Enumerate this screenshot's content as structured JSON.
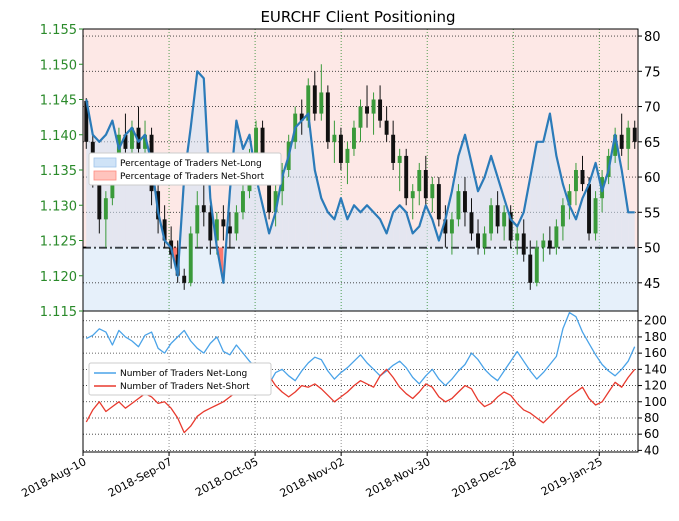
{
  "chart_data": {
    "title": "EURCHF Client Positioning",
    "type": "line",
    "x_tick_labels": [
      "2018-Aug-10",
      "2018-Sep-07",
      "2018-Oct-05",
      "2018-Nov-02",
      "2018-Nov-30",
      "2018-Dec-28",
      "2019-Jan-25"
    ],
    "price_axis": {
      "ticks": [
        "1.115",
        "1.120",
        "1.125",
        "1.130",
        "1.135",
        "1.140",
        "1.145",
        "1.150",
        "1.155"
      ],
      "ylim": [
        1.115,
        1.155
      ],
      "color": "#2a8a2a"
    },
    "percent_axis": {
      "ticks": [
        "45",
        "50",
        "55",
        "60",
        "65",
        "70",
        "75",
        "80"
      ],
      "ylim": [
        41,
        81
      ]
    },
    "count_axis": {
      "ticks": [
        "40",
        "60",
        "80",
        "100",
        "120",
        "140",
        "160",
        "180",
        "200"
      ],
      "ylim": [
        38,
        212
      ]
    },
    "upper_legend": [
      "Percentage of Traders Net-Long",
      "Percentage of Traders Net-Short"
    ],
    "lower_legend": [
      "Number of Traders Net-Long",
      "Number of Traders Net-Short"
    ],
    "neutral_level": 50,
    "grid": true,
    "legend_upper_placement": "center-left",
    "legend_lower_placement": "center-left",
    "colors": {
      "net_long_line": "#2b7bb9",
      "net_short_fill": "#ff6b5e",
      "long_count_line": "#4aa3e8",
      "short_count_line": "#e83a2e",
      "candle_up": "#3a9a3a",
      "candle_down": "#111111",
      "long_region": "#e6f0fa",
      "short_region": "#fde8e6"
    },
    "candles": [
      [
        1.1448,
        1.1452,
        1.138,
        1.139
      ],
      [
        1.139,
        1.14,
        1.1325,
        1.133
      ],
      [
        1.133,
        1.134,
        1.126,
        1.128
      ],
      [
        1.128,
        1.132,
        1.124,
        1.131
      ],
      [
        1.131,
        1.136,
        1.13,
        1.135
      ],
      [
        1.135,
        1.141,
        1.134,
        1.14
      ],
      [
        1.14,
        1.143,
        1.136,
        1.138
      ],
      [
        1.138,
        1.142,
        1.135,
        1.141
      ],
      [
        1.141,
        1.144,
        1.137,
        1.138
      ],
      [
        1.138,
        1.142,
        1.136,
        1.14
      ],
      [
        1.14,
        1.141,
        1.13,
        1.132
      ],
      [
        1.132,
        1.134,
        1.126,
        1.128
      ],
      [
        1.128,
        1.13,
        1.124,
        1.125
      ],
      [
        1.125,
        1.127,
        1.121,
        1.123
      ],
      [
        1.123,
        1.125,
        1.119,
        1.12
      ],
      [
        1.12,
        1.121,
        1.118,
        1.119
      ],
      [
        1.119,
        1.127,
        1.1185,
        1.126
      ],
      [
        1.126,
        1.132,
        1.124,
        1.13
      ],
      [
        1.13,
        1.133,
        1.127,
        1.129
      ],
      [
        1.129,
        1.13,
        1.123,
        1.125
      ],
      [
        1.125,
        1.129,
        1.123,
        1.128
      ],
      [
        1.128,
        1.13,
        1.125,
        1.127
      ],
      [
        1.127,
        1.129,
        1.124,
        1.126
      ],
      [
        1.126,
        1.13,
        1.125,
        1.129
      ],
      [
        1.129,
        1.133,
        1.128,
        1.132
      ],
      [
        1.132,
        1.138,
        1.131,
        1.137
      ],
      [
        1.137,
        1.142,
        1.136,
        1.141
      ],
      [
        1.141,
        1.142,
        1.134,
        1.135
      ],
      [
        1.135,
        1.136,
        1.128,
        1.129
      ],
      [
        1.129,
        1.133,
        1.127,
        1.132
      ],
      [
        1.132,
        1.136,
        1.13,
        1.135
      ],
      [
        1.135,
        1.14,
        1.134,
        1.139
      ],
      [
        1.139,
        1.144,
        1.138,
        1.143
      ],
      [
        1.143,
        1.145,
        1.14,
        1.142
      ],
      [
        1.142,
        1.148,
        1.141,
        1.147
      ],
      [
        1.147,
        1.149,
        1.142,
        1.143
      ],
      [
        1.143,
        1.15,
        1.142,
        1.146
      ],
      [
        1.146,
        1.147,
        1.138,
        1.139
      ],
      [
        1.139,
        1.142,
        1.136,
        1.14
      ],
      [
        1.14,
        1.141,
        1.135,
        1.136
      ],
      [
        1.136,
        1.139,
        1.133,
        1.138
      ],
      [
        1.138,
        1.142,
        1.137,
        1.141
      ],
      [
        1.141,
        1.145,
        1.139,
        1.144
      ],
      [
        1.144,
        1.147,
        1.141,
        1.143
      ],
      [
        1.143,
        1.146,
        1.14,
        1.145
      ],
      [
        1.145,
        1.147,
        1.141,
        1.142
      ],
      [
        1.142,
        1.144,
        1.139,
        1.14
      ],
      [
        1.14,
        1.142,
        1.135,
        1.136
      ],
      [
        1.136,
        1.138,
        1.132,
        1.137
      ],
      [
        1.137,
        1.138,
        1.13,
        1.131
      ],
      [
        1.131,
        1.133,
        1.128,
        1.132
      ],
      [
        1.132,
        1.136,
        1.13,
        1.135
      ],
      [
        1.135,
        1.137,
        1.13,
        1.131
      ],
      [
        1.131,
        1.134,
        1.129,
        1.133
      ],
      [
        1.133,
        1.134,
        1.127,
        1.128
      ],
      [
        1.128,
        1.13,
        1.124,
        1.126
      ],
      [
        1.126,
        1.129,
        1.123,
        1.128
      ],
      [
        1.128,
        1.133,
        1.127,
        1.132
      ],
      [
        1.132,
        1.134,
        1.127,
        1.129
      ],
      [
        1.129,
        1.131,
        1.125,
        1.126
      ],
      [
        1.126,
        1.128,
        1.123,
        1.124
      ],
      [
        1.124,
        1.127,
        1.123,
        1.126
      ],
      [
        1.126,
        1.131,
        1.125,
        1.13
      ],
      [
        1.13,
        1.132,
        1.126,
        1.127
      ],
      [
        1.127,
        1.13,
        1.125,
        1.129
      ],
      [
        1.129,
        1.13,
        1.124,
        1.125
      ],
      [
        1.125,
        1.127,
        1.123,
        1.126
      ],
      [
        1.126,
        1.128,
        1.122,
        1.123
      ],
      [
        1.123,
        1.125,
        1.118,
        1.119
      ],
      [
        1.119,
        1.125,
        1.1185,
        1.124
      ],
      [
        1.124,
        1.126,
        1.122,
        1.125
      ],
      [
        1.125,
        1.127,
        1.123,
        1.124
      ],
      [
        1.124,
        1.128,
        1.123,
        1.127
      ],
      [
        1.127,
        1.131,
        1.125,
        1.13
      ],
      [
        1.13,
        1.133,
        1.128,
        1.132
      ],
      [
        1.132,
        1.136,
        1.13,
        1.135
      ],
      [
        1.135,
        1.137,
        1.132,
        1.133
      ],
      [
        1.133,
        1.134,
        1.125,
        1.126
      ],
      [
        1.126,
        1.132,
        1.125,
        1.131
      ],
      [
        1.131,
        1.135,
        1.129,
        1.134
      ],
      [
        1.134,
        1.138,
        1.133,
        1.137
      ],
      [
        1.137,
        1.141,
        1.136,
        1.14
      ],
      [
        1.14,
        1.143,
        1.137,
        1.138
      ],
      [
        1.138,
        1.142,
        1.135,
        1.141
      ],
      [
        1.141,
        1.142,
        1.138,
        1.139
      ]
    ],
    "series": [
      {
        "name": "Percentage of Traders Net-Long",
        "values": [
          71,
          66,
          65,
          66,
          68,
          64,
          66,
          67,
          65,
          66,
          62,
          55,
          51,
          50,
          46,
          60,
          67,
          75,
          74,
          57,
          50,
          45,
          58,
          68,
          64,
          66,
          60,
          56,
          52,
          55,
          60,
          63,
          67,
          68,
          69,
          61,
          57,
          55,
          54,
          57,
          54,
          56,
          55,
          56,
          55,
          54,
          52,
          55,
          56,
          55,
          52,
          53,
          56,
          54,
          51,
          54,
          58,
          63,
          66,
          62,
          58,
          60,
          63,
          60,
          57,
          54,
          53,
          55,
          60,
          65,
          65,
          69,
          63,
          59,
          56,
          54,
          57,
          59,
          62,
          58,
          61,
          66,
          61,
          55,
          55
        ],
        "min": 45,
        "max": 75
      },
      {
        "name": "Number of Traders Net-Long",
        "values": [
          178,
          182,
          190,
          186,
          170,
          188,
          180,
          175,
          168,
          182,
          186,
          166,
          160,
          172,
          180,
          188,
          175,
          166,
          160,
          172,
          180,
          162,
          158,
          170,
          160,
          150,
          142,
          130,
          122,
          136,
          140,
          132,
          126,
          138,
          148,
          155,
          152,
          138,
          128,
          136,
          142,
          150,
          158,
          148,
          140,
          132,
          138,
          145,
          150,
          142,
          130,
          122,
          132,
          140,
          128,
          120,
          128,
          138,
          146,
          160,
          152,
          140,
          132,
          126,
          138,
          150,
          162,
          150,
          138,
          128,
          136,
          146,
          156,
          190,
          210,
          205,
          186,
          172,
          158,
          146,
          138,
          132,
          140,
          150,
          168
        ]
      },
      {
        "name": "Number of Traders Net-Short",
        "values": [
          75,
          90,
          100,
          88,
          94,
          100,
          92,
          98,
          104,
          110,
          106,
          98,
          100,
          92,
          80,
          62,
          70,
          82,
          88,
          92,
          96,
          100,
          106,
          112,
          120,
          126,
          130,
          126,
          132,
          120,
          112,
          106,
          112,
          120,
          118,
          122,
          116,
          108,
          100,
          106,
          112,
          120,
          126,
          122,
          118,
          132,
          140,
          130,
          118,
          110,
          104,
          112,
          122,
          118,
          106,
          100,
          104,
          112,
          120,
          116,
          102,
          94,
          98,
          106,
          112,
          108,
          98,
          90,
          86,
          80,
          74,
          82,
          90,
          98,
          106,
          112,
          118,
          104,
          96,
          100,
          112,
          124,
          118,
          130,
          140
        ]
      }
    ]
  }
}
